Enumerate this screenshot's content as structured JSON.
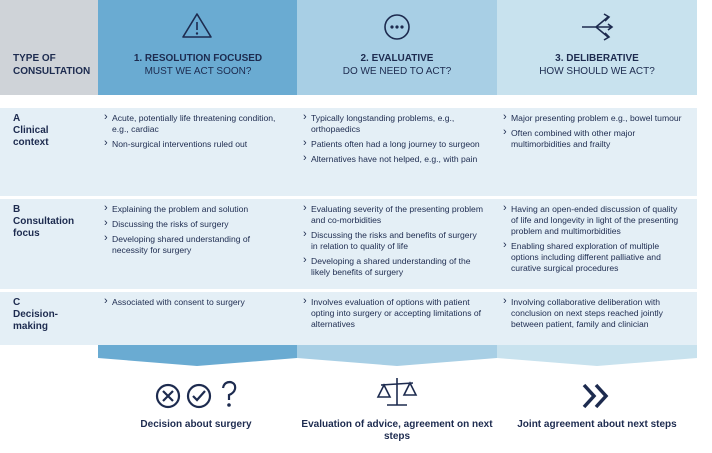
{
  "header": {
    "label": "TYPE OF CONSULTATION",
    "columns": [
      {
        "title": "1. RESOLUTION FOCUSED",
        "question": "MUST WE ACT SOON?"
      },
      {
        "title": "2. EVALUATIVE",
        "question": "DO WE NEED TO ACT?"
      },
      {
        "title": "3. DELIBERATIVE",
        "question": "HOW SHOULD WE ACT?"
      }
    ]
  },
  "rows": [
    {
      "letter": "A",
      "label": "Clinical context",
      "cells": [
        [
          "Acute, potentially life threatening condition, e.g., cardiac",
          "Non-surgical interventions ruled out"
        ],
        [
          "Typically longstanding problems, e.g., orthopaedics",
          "Patients often had  a long journey to surgeon",
          "Alternatives have not helped, e.g., with pain"
        ],
        [
          "Major presenting problem e.g., bowel tumour",
          "Often combined with other major multimorbidities and frailty"
        ]
      ]
    },
    {
      "letter": "B",
      "label": "Consultation focus",
      "cells": [
        [
          "Explaining the problem and solution",
          "Discussing the risks of surgery",
          "Developing shared understanding of necessity for surgery"
        ],
        [
          "Evaluating severity of the presenting problem and co-morbidities",
          "Discussing the risks and benefits of surgery in relation to quality of life",
          "Developing a shared understanding of the likely benefits of surgery"
        ],
        [
          "Having an open-ended discussion of quality of life and longevity in light of the presenting problem and multimorbidities",
          "Enabling shared exploration of multiple options including different palliative and curative surgical procedures"
        ]
      ]
    },
    {
      "letter": "C",
      "label": "Decision-making",
      "cells": [
        [
          "Associated with consent to surgery"
        ],
        [
          "Involves evaluation of options with patient opting into surgery or accepting limitations of alternatives"
        ],
        [
          "Involving collaborative deliberation with conclusion on next steps reached jointly between patient, family and clinician"
        ]
      ]
    }
  ],
  "outcomes": [
    "Decision about surgery",
    "Evaluation of advice, agreement on next steps",
    "Joint agreement about next steps"
  ]
}
